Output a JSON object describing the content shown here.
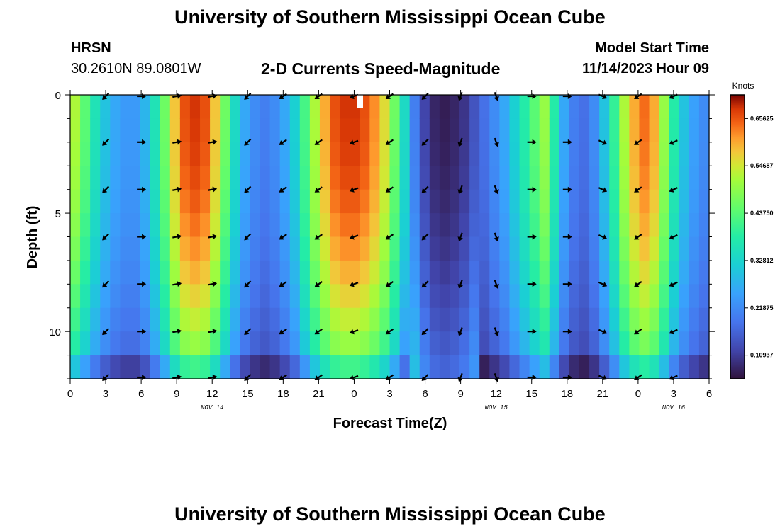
{
  "header": {
    "title": "University of Southern Mississippi Ocean Cube",
    "station": "HRSN",
    "coordinates": "30.2610N  89.0801W",
    "subtitle": "2-D Currents Speed-Magnitude",
    "model_start_label": "Model Start Time",
    "model_start_value": "11/14/2023 Hour 09"
  },
  "footer": {
    "title": "University of Southern Mississippi Ocean Cube"
  },
  "chart_data": {
    "type": "heatmap",
    "title": "2-D Currents Speed-Magnitude",
    "xlabel": "Forecast Time(Z)",
    "ylabel": "Depth (ft)",
    "x_range_hours": [
      0,
      54
    ],
    "x_ticks": [
      "0",
      "3",
      "6",
      "9",
      "12",
      "15",
      "18",
      "21",
      "0",
      "3",
      "6",
      "9",
      "12",
      "15",
      "18",
      "21",
      "0",
      "3",
      "6"
    ],
    "date_labels": [
      {
        "label": "NOV 14",
        "hour": 12
      },
      {
        "label": "NOV 15",
        "hour": 36
      },
      {
        "label": "NOV 16",
        "hour": 51
      }
    ],
    "y_ticks": [
      0,
      5,
      10
    ],
    "ylim": [
      0,
      12
    ],
    "colorbar": {
      "unit": "Knots",
      "range": [
        0.0547,
        0.7109
      ],
      "labels": [
        "0.65625",
        "0.54687",
        "0.43750",
        "0.32812",
        "0.21875",
        "0.10937"
      ],
      "label_values": [
        0.65625,
        0.54687,
        0.4375,
        0.32812,
        0.21875,
        0.10937
      ]
    },
    "speed_profile_knots": [
      0.52,
      0.44,
      0.36,
      0.3,
      0.26,
      0.24,
      0.24,
      0.28,
      0.36,
      0.46,
      0.58,
      0.66,
      0.68,
      0.66,
      0.58,
      0.46,
      0.34,
      0.26,
      0.22,
      0.2,
      0.22,
      0.26,
      0.32,
      0.42,
      0.52,
      0.6,
      0.66,
      0.68,
      0.68,
      0.66,
      0.62,
      0.56,
      0.46,
      0.34,
      0.2,
      0.12,
      0.08,
      0.07,
      0.08,
      0.1,
      0.14,
      0.18,
      0.22,
      0.26,
      0.32,
      0.38,
      0.44,
      0.5,
      0.38,
      0.26,
      0.2,
      0.18,
      0.22,
      0.3,
      0.4,
      0.52,
      0.6,
      0.64,
      0.6,
      0.5,
      0.38,
      0.3,
      0.25,
      0.22
    ],
    "arrow_hours": [
      3,
      6,
      9,
      12,
      15,
      18,
      21,
      24,
      27,
      30,
      33,
      36,
      39,
      42,
      45,
      48,
      51
    ],
    "arrow_depths_ft": [
      0,
      2,
      4,
      6,
      8,
      10,
      12
    ],
    "arrow_directions_deg": [
      225,
      0,
      10,
      10,
      225,
      215,
      215,
      200,
      215,
      225,
      250,
      290,
      0,
      0,
      335,
      215,
      205
    ]
  }
}
